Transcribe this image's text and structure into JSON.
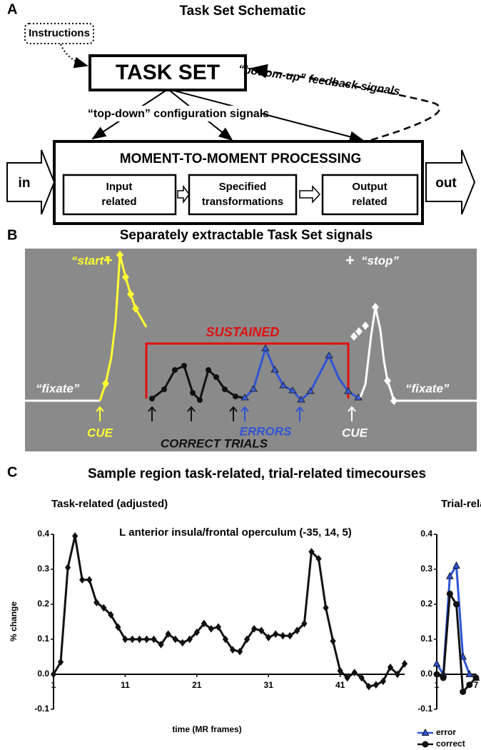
{
  "panel_a": {
    "label": "A",
    "title": "Task Set Schematic",
    "instructions": "Instructions",
    "task_set": "TASK SET",
    "bottom_up": "“bottom-up” feedback signals",
    "top_down": "“top-down”  configuration signals",
    "processing": "MOMENT-TO-MOMENT PROCESSING",
    "in": "in",
    "out": "out",
    "stages": [
      [
        "Input",
        "related"
      ],
      [
        "Specified",
        "transformations"
      ],
      [
        "Output",
        "related"
      ]
    ]
  },
  "panel_b": {
    "label": "B",
    "title": "Separately extractable Task Set signals",
    "start": "“start”",
    "stop": "“stop”",
    "plus": "+",
    "fixate": "“fixate”",
    "sustained": "SUSTAINED",
    "cue": "CUE",
    "errors": "ERRORS",
    "correct_trials": "CORRECT  TRIALS"
  },
  "panel_c": {
    "label": "C",
    "title": "Sample region task-related, trial-related timecourses"
  },
  "chart_data": [
    {
      "type": "line",
      "title": "Task-related (adjusted)",
      "annotation": "L anterior insula/frontal operculum (-35, 14, 5)",
      "xlabel": "time (MR frames)",
      "ylabel": "% change",
      "x": [
        1,
        2,
        3,
        4,
        5,
        6,
        7,
        8,
        9,
        10,
        11,
        12,
        13,
        14,
        15,
        16,
        17,
        18,
        19,
        20,
        21,
        22,
        23,
        24,
        25,
        26,
        27,
        28,
        29,
        30,
        31,
        32,
        33,
        34,
        35,
        36,
        37,
        38,
        39,
        40,
        41,
        42,
        43,
        44,
        45,
        46,
        47,
        48,
        49,
        50
      ],
      "values": [
        0,
        0.035,
        0.305,
        0.395,
        0.27,
        0.27,
        0.205,
        0.19,
        0.17,
        0.135,
        0.1,
        0.1,
        0.1,
        0.1,
        0.1,
        0.085,
        0.115,
        0.1,
        0.09,
        0.1,
        0.12,
        0.145,
        0.13,
        0.135,
        0.1,
        0.07,
        0.065,
        0.1,
        0.13,
        0.125,
        0.105,
        0.115,
        0.11,
        0.11,
        0.125,
        0.145,
        0.35,
        0.33,
        0.19,
        0.095,
        0.01,
        -0.01,
        0.005,
        -0.01,
        -0.035,
        -0.03,
        -0.02,
        0.02,
        0,
        0.03
      ],
      "color": "#111111",
      "marker": "diamond",
      "xlim": [
        1,
        50
      ],
      "xticks": [
        1,
        11,
        21,
        31,
        41
      ],
      "ylim": [
        -0.1,
        0.4
      ],
      "yticks": [
        -0.1,
        {
          "value": 0,
          "label": "0.0"
        },
        0.1,
        0.2,
        0.3,
        0.4
      ]
    },
    {
      "type": "line",
      "title": "Trial-related",
      "x": [
        1,
        2,
        3,
        4,
        5,
        6,
        7
      ],
      "series": [
        {
          "name": "error",
          "color": "#2f55d4",
          "marker": "triangle",
          "values": [
            0.03,
            0,
            0.28,
            0.31,
            0.05,
            0,
            -0.01
          ]
        },
        {
          "name": "correct",
          "color": "#111111",
          "marker": "circle",
          "values": [
            0,
            -0.01,
            0.23,
            0.2,
            -0.05,
            -0.03,
            -0.01
          ]
        }
      ],
      "xlim": [
        1,
        7
      ],
      "xticks": [
        1,
        7
      ],
      "ylim": [
        -0.1,
        0.4
      ],
      "yticks": [
        -0.1,
        {
          "value": 0,
          "label": "0.0"
        },
        0.1,
        0.2,
        0.3,
        0.4
      ],
      "legend": "bottom"
    }
  ]
}
